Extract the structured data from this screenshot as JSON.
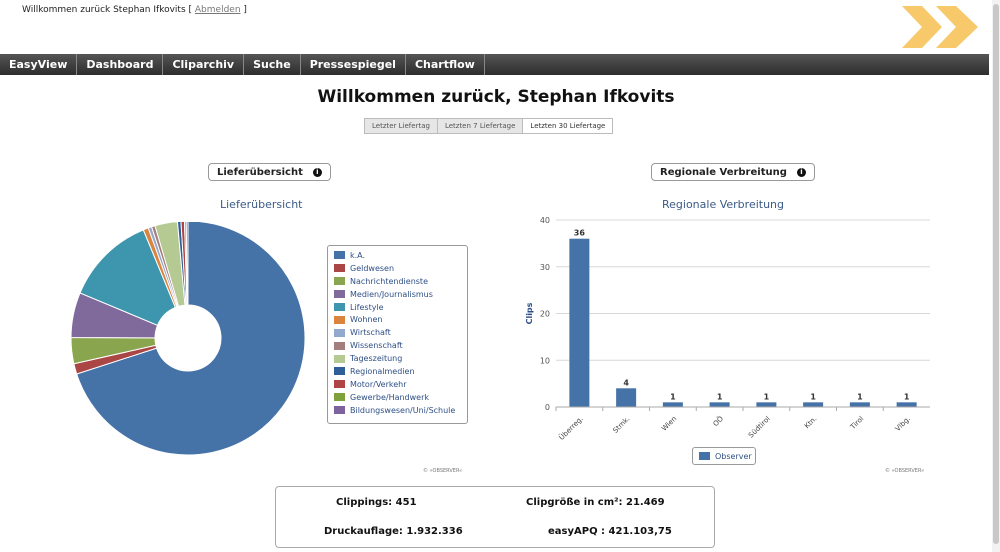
{
  "header": {
    "greeting": "Willkommen zurück Stephan Ifkovits [",
    "logout": "Abmelden",
    "greeting_end": "]"
  },
  "nav": [
    "EasyView",
    "Dashboard",
    "Cliparchiv",
    "Suche",
    "Pressespiegel",
    "Chartflow"
  ],
  "page_title": "Willkommen zurück, Stephan Ifkovits",
  "range_buttons": [
    "Letzter Liefertag",
    "Letzten 7 Liefertage",
    "Letzten 30 Liefertage"
  ],
  "panels": {
    "left_pill": "Lieferübersicht",
    "right_pill": "Regionale Verbreitung"
  },
  "credit": "© »OBSERVER«",
  "chart_data": [
    {
      "type": "pie",
      "title": "Lieferübersicht",
      "categories": [
        "k.A.",
        "Geldwesen",
        "Nachrichtendienste",
        "Medien/Journalismus",
        "Lifestyle",
        "Wohnen",
        "Wirtschaft",
        "Wissenschaft",
        "Tageszeitung",
        "Regionalmedien",
        "Motor/Verkehr",
        "Gewerbe/Handwerk",
        "Bildungswesen/Uni/Schule"
      ],
      "values": [
        292,
        6,
        15,
        26,
        52,
        3,
        2,
        2,
        13,
        2,
        2,
        1,
        1
      ],
      "colors": [
        "#4572a7",
        "#aa4643",
        "#89a54e",
        "#80699b",
        "#3d96ae",
        "#db843d",
        "#92a8cd",
        "#a47d7c",
        "#b5ca92",
        "#2f5f98",
        "#b04343",
        "#7fa13c",
        "#7e62a0"
      ],
      "legend": "right"
    },
    {
      "type": "bar",
      "title": "Regionale Verbreitung",
      "categories": [
        "Überreg.",
        "Stmk.",
        "Wien",
        "OÖ",
        "Südtirol",
        "Ktn.",
        "Tirol",
        "Vlbg."
      ],
      "series": [
        {
          "name": "Observer",
          "values": [
            36,
            4,
            1,
            1,
            1,
            1,
            1,
            1
          ]
        }
      ],
      "ylabel": "Clips",
      "ylim": [
        0,
        40
      ],
      "yticks": [
        0,
        10,
        20,
        30,
        40
      ],
      "grid": true,
      "color": "#4572a7",
      "legend": "bottom"
    }
  ],
  "summary": {
    "clippings": "Clippings: 451",
    "clipsize": "Clipgröße in cm²: 21.469",
    "druckauflage": "Druckauflage: 1.932.336",
    "easyapq": "easyAPQ : 421.103,75"
  }
}
